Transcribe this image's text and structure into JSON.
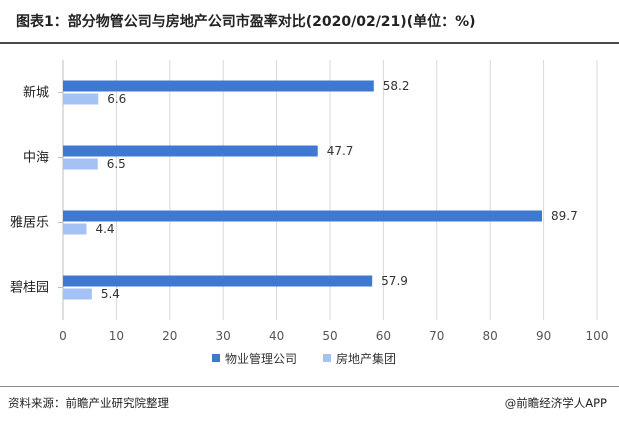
{
  "title": "图表1：部分物管公司与房地产公司市盈率对比(2020/02/21)(单位：%)",
  "source": "资料来源：前瞻产业研究院整理",
  "credit": "@前瞻经济学人APP",
  "chart_data": {
    "type": "bar",
    "orientation": "horizontal",
    "categories": [
      "新城",
      "中海",
      "雅居乐",
      "碧桂园"
    ],
    "series": [
      {
        "name": "物业管理公司",
        "color": "#3f78d1",
        "values": [
          58.2,
          47.7,
          89.7,
          57.9
        ]
      },
      {
        "name": "房地产集团",
        "color": "#a4c2f4",
        "values": [
          6.6,
          6.5,
          4.4,
          5.4
        ]
      }
    ],
    "x_ticks": [
      "0",
      "10",
      "20",
      "30",
      "40",
      "50",
      "60",
      "70",
      "80",
      "90",
      "100"
    ],
    "xlim": [
      0,
      100
    ],
    "grid": true,
    "legend_position": "bottom"
  }
}
